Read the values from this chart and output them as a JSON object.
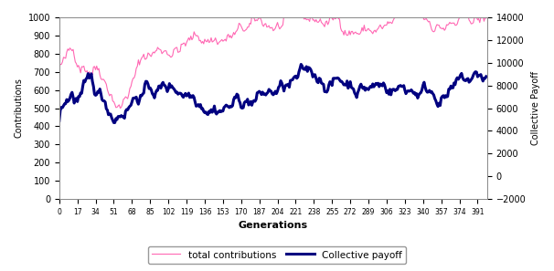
{
  "title": "",
  "xlabel": "Generations",
  "ylabel_left": "Contributions",
  "ylabel_right": "Collective Payoff",
  "x_ticks": [
    0,
    17,
    34,
    51,
    68,
    85,
    102,
    119,
    136,
    153,
    170,
    187,
    204,
    221,
    238,
    255,
    272,
    289,
    306,
    323,
    340,
    357,
    374,
    391
  ],
  "ylim_left": [
    0,
    1000
  ],
  "ylim_right": [
    -2000,
    14000
  ],
  "yticks_left": [
    0,
    100,
    200,
    300,
    400,
    500,
    600,
    700,
    800,
    900,
    1000
  ],
  "yticks_right": [
    -2000,
    0,
    2000,
    4000,
    6000,
    8000,
    10000,
    12000,
    14000
  ],
  "contributions_color": "#FF69B4",
  "payoff_color": "#000080",
  "contributions_linewidth": 0.8,
  "payoff_linewidth": 2.2,
  "legend_labels": [
    "total contributions",
    "Collective payoff"
  ],
  "n_points": 400,
  "seed": 42
}
